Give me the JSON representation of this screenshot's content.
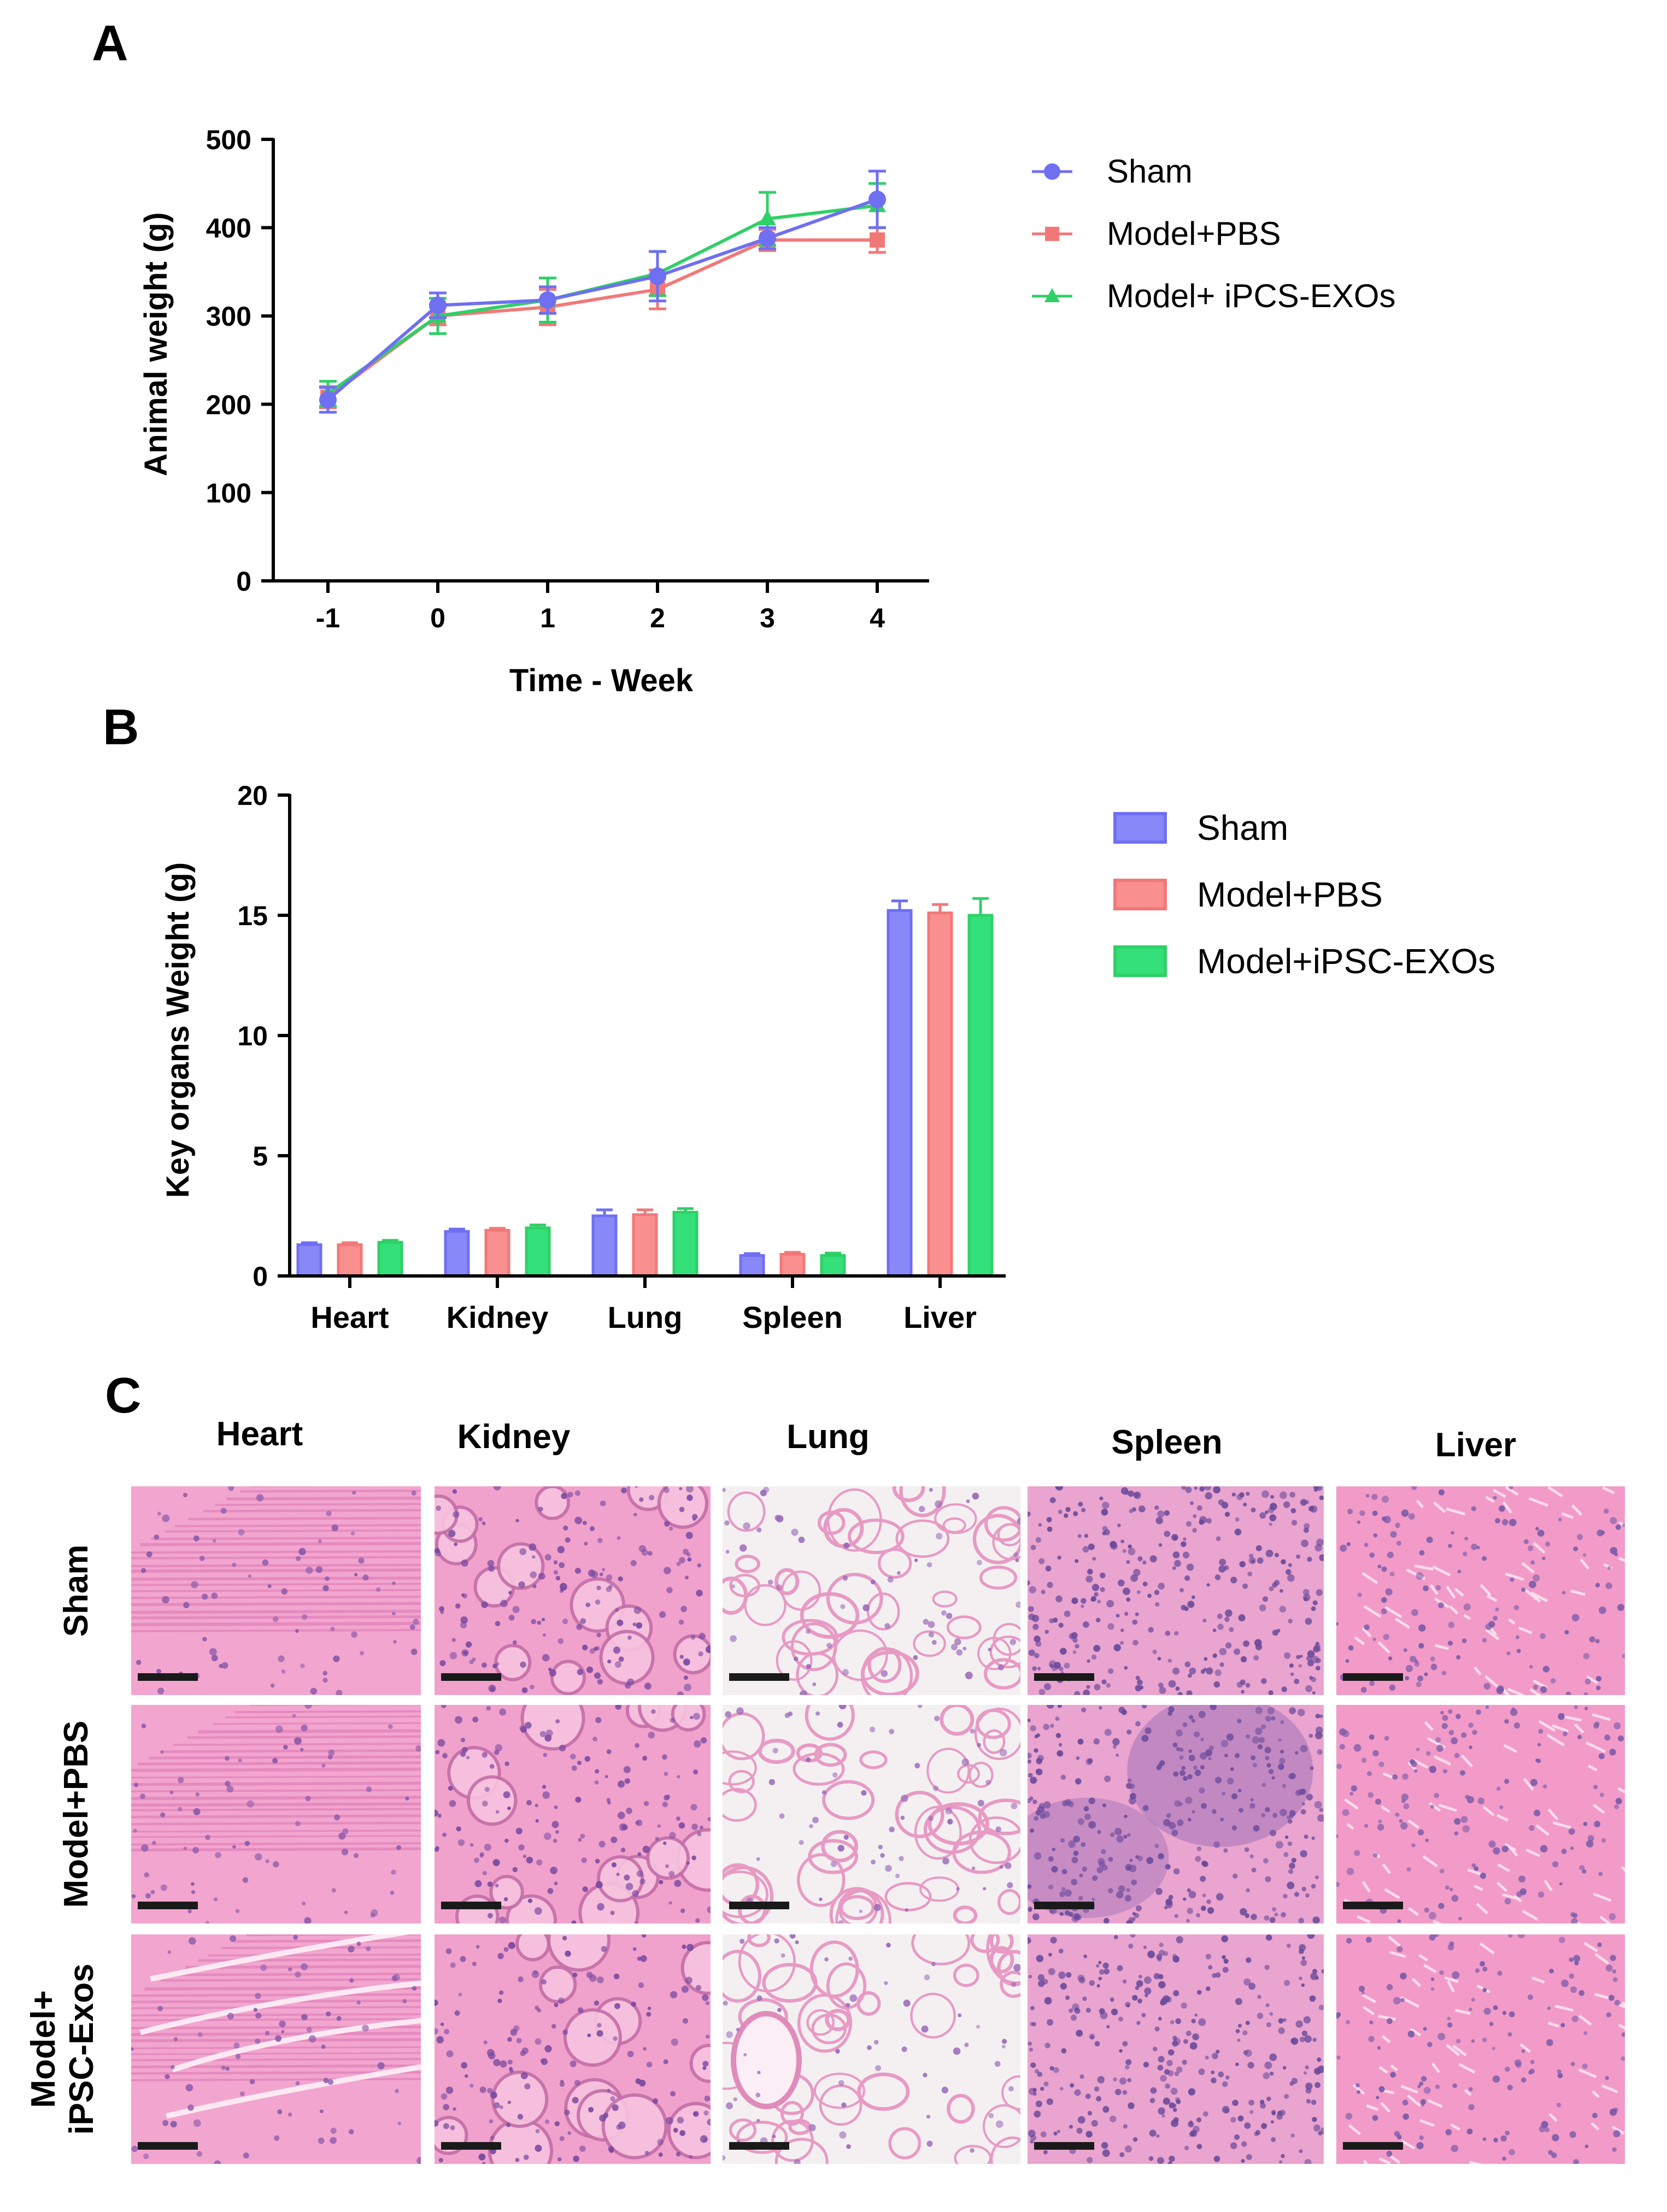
{
  "panels": {
    "a": "A",
    "b": "B",
    "c": "C"
  },
  "colors": {
    "sham": "#6f6ff2",
    "pbs": "#f27878",
    "exo": "#2fd066",
    "sham_bar": "#8888f8",
    "pbs_bar": "#f98f8f",
    "exo_bar": "#33e07a",
    "he_pink": "#ef9fd0",
    "he_nuclei": "#6b4f9e"
  },
  "chart_data": [
    {
      "type": "line",
      "title": "",
      "xlabel": "Time - Week",
      "ylabel": "Animal weight (g)",
      "x": [
        -1,
        0,
        1,
        2,
        3,
        4
      ],
      "x_ticks": [
        "-1",
        "0",
        "1",
        "2",
        "3",
        "4"
      ],
      "ylim": [
        0,
        500
      ],
      "y_ticks": [
        "0",
        "100",
        "200",
        "300",
        "400",
        "500"
      ],
      "legend_position": "right",
      "series": [
        {
          "name": "Sham",
          "marker": "circle",
          "values": [
            205,
            312,
            318,
            345,
            388,
            432
          ],
          "errors": [
            14,
            14,
            15,
            28,
            12,
            32
          ]
        },
        {
          "name": "Model+PBS",
          "marker": "square",
          "values": [
            208,
            300,
            310,
            330,
            386,
            386
          ],
          "errors": [
            12,
            10,
            20,
            22,
            12,
            14
          ]
        },
        {
          "name": "Model+ iPCS-EXOs",
          "marker": "triangle",
          "values": [
            212,
            300,
            318,
            348,
            410,
            425
          ],
          "errors": [
            14,
            20,
            25,
            25,
            30,
            25
          ]
        }
      ]
    },
    {
      "type": "bar",
      "title": "",
      "xlabel": "",
      "ylabel": "Key organs Weight (g)",
      "categories": [
        "Heart",
        "Kidney",
        "Lung",
        "Spleen",
        "Liver"
      ],
      "ylim": [
        0,
        20
      ],
      "y_ticks": [
        "0",
        "5",
        "10",
        "15",
        "20"
      ],
      "legend_position": "right",
      "series": [
        {
          "name": "Sham",
          "values": [
            1.3,
            1.85,
            2.5,
            0.85,
            15.2
          ],
          "errors": [
            0.08,
            0.1,
            0.25,
            0.08,
            0.4
          ]
        },
        {
          "name": "Model+PBS",
          "values": [
            1.3,
            1.9,
            2.55,
            0.9,
            15.1
          ],
          "errors": [
            0.08,
            0.08,
            0.2,
            0.08,
            0.35
          ]
        },
        {
          "name": "Model+iPSC-EXOs",
          "values": [
            1.4,
            2.0,
            2.65,
            0.85,
            15.0
          ],
          "errors": [
            0.08,
            0.12,
            0.15,
            0.1,
            0.7
          ]
        }
      ]
    }
  ],
  "histology": {
    "columns": [
      "Heart",
      "Kidney",
      "Lung",
      "Spleen",
      "Liver"
    ],
    "rows": [
      {
        "label": "Sham"
      },
      {
        "label": "Model+PBS"
      },
      {
        "label_lines": [
          "Model+",
          "iPSC-Exos"
        ]
      }
    ]
  }
}
